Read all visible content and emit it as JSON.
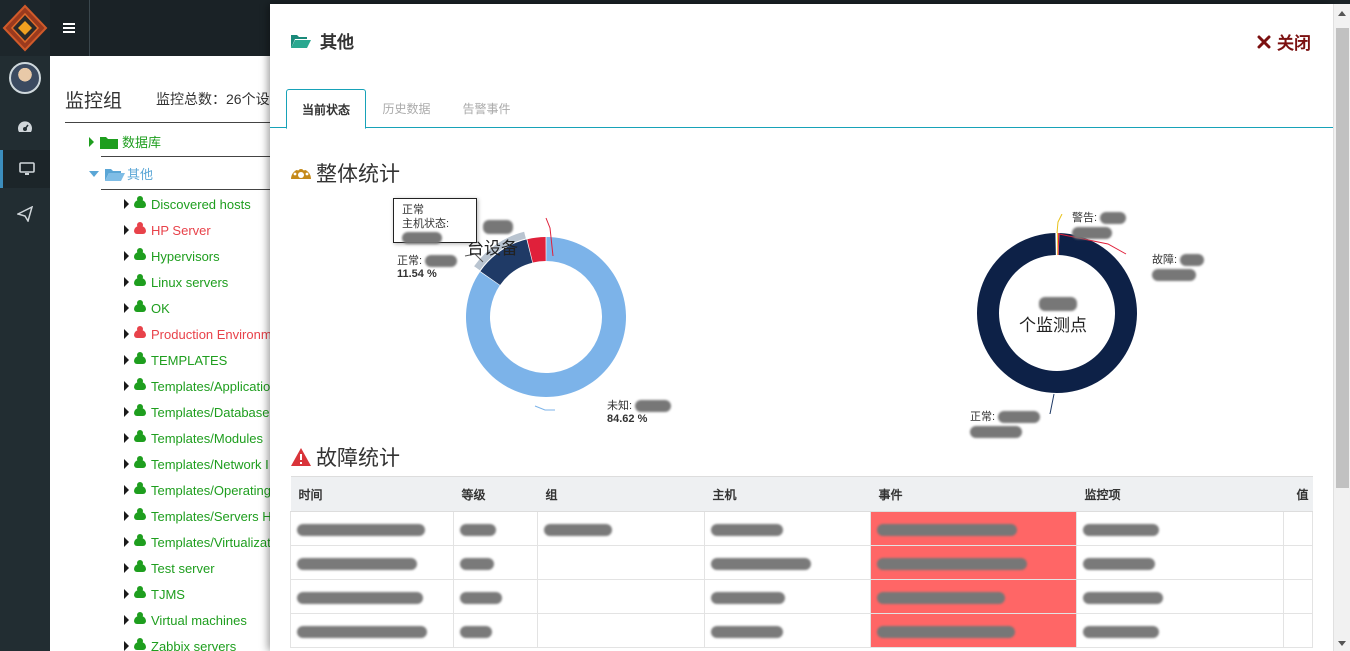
{
  "colors": {
    "green": "#1e9e1e",
    "red": "#e8424a",
    "accent": "#17a2b8",
    "dark_navy": "#0d2147",
    "light_blue": "#7cb3e9",
    "navy": "#1f3a66",
    "crimson": "#e0203a",
    "fault_cell": "#ff6666"
  },
  "background": {
    "title": "监控组",
    "total": "监控总数：26个设",
    "tree": [
      {
        "label": "数据库",
        "icon": "folder-closed-icon",
        "color": "#1e9e1e"
      },
      {
        "label": "其他",
        "icon": "folder-open-icon",
        "color": "#5aa6d6"
      }
    ],
    "hosts": [
      {
        "label": "Discovered hosts",
        "status": "ok"
      },
      {
        "label": "HP Server",
        "status": "problem"
      },
      {
        "label": "Hypervisors",
        "status": "ok"
      },
      {
        "label": "Linux servers",
        "status": "ok"
      },
      {
        "label": "OK",
        "status": "ok"
      },
      {
        "label": "Production Environm",
        "status": "problem"
      },
      {
        "label": "TEMPLATES",
        "status": "ok"
      },
      {
        "label": "Templates/Applicatio",
        "status": "ok"
      },
      {
        "label": "Templates/Database",
        "status": "ok"
      },
      {
        "label": "Templates/Modules",
        "status": "ok"
      },
      {
        "label": "Templates/Network I",
        "status": "ok"
      },
      {
        "label": "Templates/Operating",
        "status": "ok"
      },
      {
        "label": "Templates/Servers H",
        "status": "ok"
      },
      {
        "label": "Templates/Virtualizat",
        "status": "ok"
      },
      {
        "label": "Test server",
        "status": "ok"
      },
      {
        "label": "TJMS",
        "status": "ok"
      },
      {
        "label": "Virtual machines",
        "status": "ok"
      },
      {
        "label": "Zabbix servers",
        "status": "ok"
      }
    ]
  },
  "modal": {
    "title": "其他",
    "close_label": "关闭",
    "tabs": [
      {
        "label": "当前状态",
        "active": true
      },
      {
        "label": "历史数据",
        "active": false
      },
      {
        "label": "告警事件",
        "active": false
      }
    ],
    "overall_title": "整体统计",
    "fault_title": "故障统计",
    "device_chart": {
      "center_label": "台设备",
      "tooltip": {
        "line1": "正常",
        "line2": "主机状态:"
      },
      "slices": [
        {
          "name": "未知",
          "label": "未知:",
          "percent": 84.62,
          "percent_label": "84.62 %",
          "color": "#7cb3e9"
        },
        {
          "name": "正常",
          "label": "正常:",
          "percent": 11.54,
          "percent_label": "11.54 %",
          "color": "#1f3a66"
        },
        {
          "name": "异常",
          "label": "异常:",
          "percent": 3.84,
          "color": "#e0203a"
        }
      ]
    },
    "monitor_chart": {
      "center_label": "个监测点",
      "labels": {
        "warning": "警告:",
        "fault": "故障:",
        "normal": "正常:"
      }
    },
    "table": {
      "columns": [
        "时间",
        "等级",
        "组",
        "主机",
        "事件",
        "监控项",
        "值"
      ],
      "row_count": 4
    }
  }
}
